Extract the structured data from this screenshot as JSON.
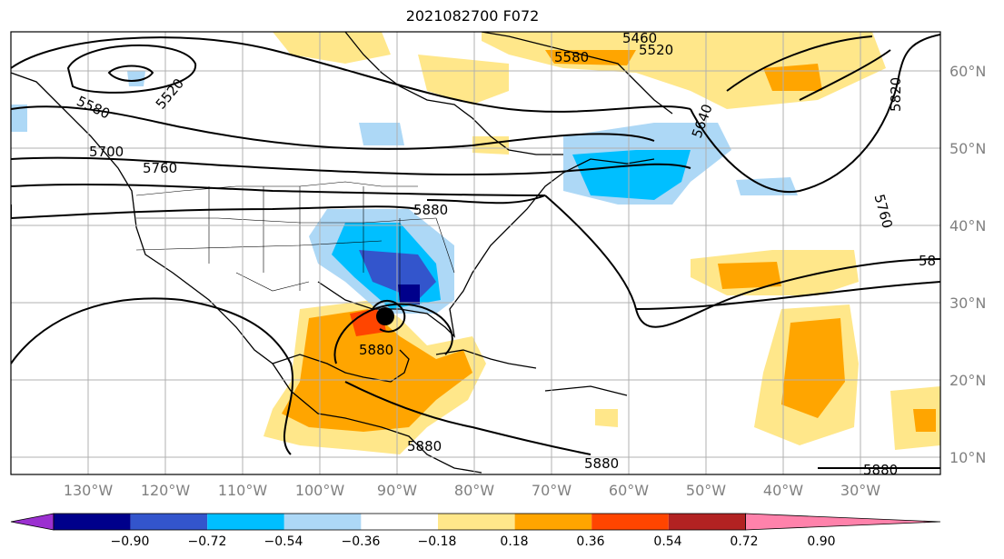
{
  "title": "2021082700 F072",
  "lat_labels": [
    "60°N",
    "50°N",
    "40°N",
    "30°N",
    "20°N",
    "10°N"
  ],
  "lon_labels": [
    "130°W",
    "120°W",
    "110°W",
    "100°W",
    "90°W",
    "80°W",
    "70°W",
    "60°W",
    "50°W",
    "40°W",
    "30°W"
  ],
  "contour_labels": [
    "5460",
    "5520",
    "5580",
    "5520",
    "5580",
    "5640",
    "5820",
    "5700",
    "5760",
    "5880",
    "5760",
    "58",
    "5880",
    "5880",
    "5880",
    "5880"
  ],
  "colorbar": {
    "ticks": [
      "−0.90",
      "−0.72",
      "−0.54",
      "−0.36",
      "−0.18",
      "0.18",
      "0.36",
      "0.54",
      "0.72",
      "0.90"
    ],
    "colors": [
      "#9b30d0",
      "#00008b",
      "#3355cc",
      "#00bfff",
      "#add8f6",
      "#ffffff",
      "#ffe78a",
      "#ffa500",
      "#ff4500",
      "#b22222",
      "#ff82ab"
    ],
    "extend": "both"
  },
  "colors": {
    "land_outline": "#000000",
    "gridline": "#b0b0b0",
    "axis_label": "#808080"
  }
}
